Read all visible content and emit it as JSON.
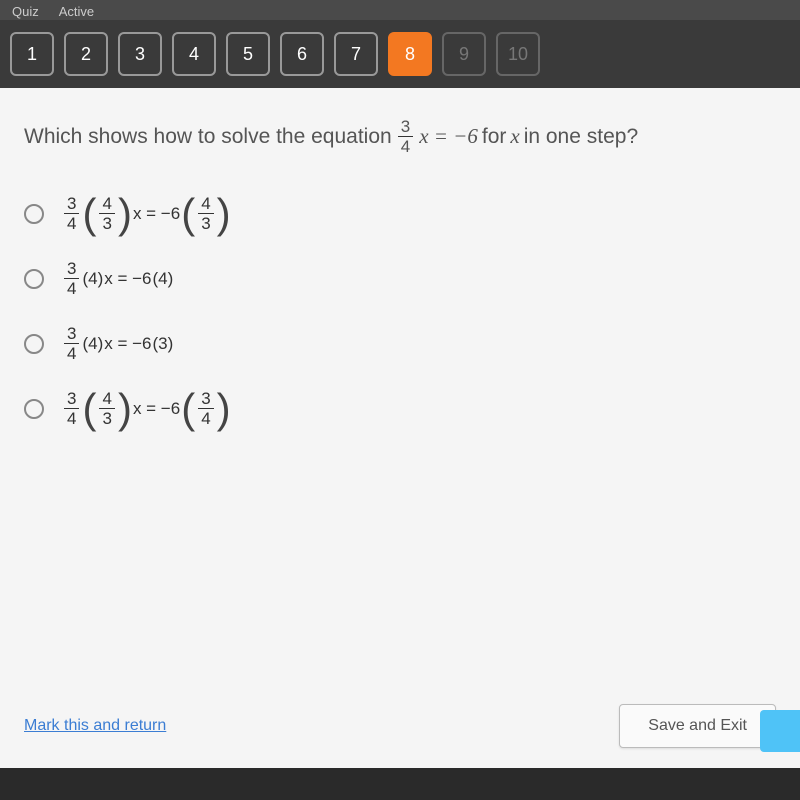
{
  "topbar": {
    "quiz_label": "Quiz",
    "active_label": "Active"
  },
  "nav": {
    "items": [
      {
        "n": "1",
        "state": "normal"
      },
      {
        "n": "2",
        "state": "normal"
      },
      {
        "n": "3",
        "state": "normal"
      },
      {
        "n": "4",
        "state": "normal"
      },
      {
        "n": "5",
        "state": "normal"
      },
      {
        "n": "6",
        "state": "normal"
      },
      {
        "n": "7",
        "state": "normal"
      },
      {
        "n": "8",
        "state": "active"
      },
      {
        "n": "9",
        "state": "disabled"
      },
      {
        "n": "10",
        "state": "disabled"
      }
    ],
    "colors": {
      "normal_border": "#999999",
      "normal_text": "#ffffff",
      "active_bg": "#f37821",
      "disabled_text": "#777777"
    }
  },
  "question": {
    "prefix": "Which shows how to solve the equation ",
    "eq_frac_num": "3",
    "eq_frac_den": "4",
    "eq_after": "x = −6",
    "suffix_1": " for ",
    "suffix_var": "x",
    "suffix_2": " in one step?"
  },
  "options": {
    "a": {
      "f1_num": "3",
      "f1_den": "4",
      "f2_num": "4",
      "f2_den": "3",
      "mid": "x = −6",
      "f3_num": "4",
      "f3_den": "3",
      "has_parens": true
    },
    "b": {
      "f1_num": "3",
      "f1_den": "4",
      "mult1": "(4)",
      "mid": "x = −6",
      "mult2": "(4)",
      "has_parens": false
    },
    "c": {
      "f1_num": "3",
      "f1_den": "4",
      "mult1": "(4)",
      "mid": "x = −6",
      "mult2": "(3)",
      "has_parens": false
    },
    "d": {
      "f1_num": "3",
      "f1_den": "4",
      "f2_num": "4",
      "f2_den": "3",
      "mid": "x = −6",
      "f3_num": "3",
      "f3_den": "4",
      "has_parens": true
    }
  },
  "footer": {
    "mark_label": "Mark this and return",
    "save_label": "Save and Exit"
  },
  "colors": {
    "panel_bg": "#f5f5f5",
    "page_bg": "#2a2a2a",
    "text": "#555555",
    "link": "#3b7dd3",
    "next_btn": "#4fc3f7"
  }
}
